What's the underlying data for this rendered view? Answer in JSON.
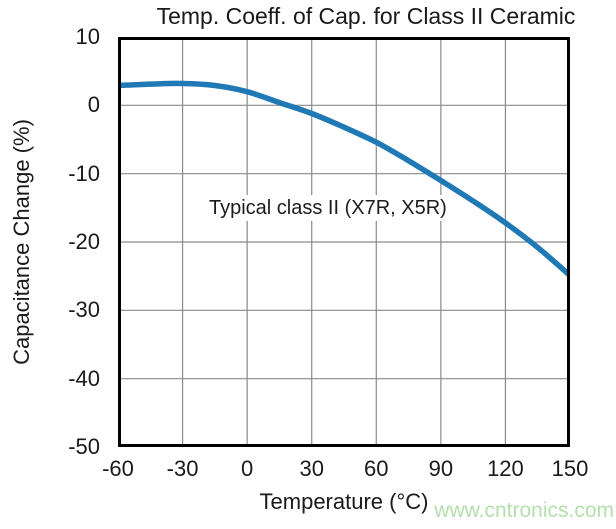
{
  "watermark": "www.cntronics.com",
  "chart_data": {
    "type": "line",
    "title": "Temp. Coeff. of Cap. for Class II Ceramic",
    "xlabel": "Temperature (°C)",
    "ylabel": "Capacitance Change (%)",
    "xlim": [
      -60,
      150
    ],
    "ylim": [
      -50,
      10
    ],
    "x_ticks": [
      -60,
      -30,
      0,
      30,
      60,
      90,
      120,
      150
    ],
    "y_ticks": [
      10,
      0,
      -10,
      -20,
      -30,
      -40,
      -50
    ],
    "grid": true,
    "legend_position": "none",
    "annotation": {
      "text": "Typical class II (X7R, X5R)"
    },
    "colors": {
      "line": "#1f79b5",
      "grid": "#8a8a8a",
      "axis": "#000000",
      "text": "#1a1a1a",
      "watermark": "#b5e0ad"
    },
    "series": [
      {
        "name": "Typical class II (X7R, X5R)",
        "x": [
          -60,
          -45,
          -30,
          -15,
          0,
          15,
          30,
          45,
          60,
          75,
          90,
          105,
          120,
          135,
          150
        ],
        "y": [
          2.9,
          3.1,
          3.2,
          2.9,
          2.0,
          0.4,
          -1.2,
          -3.2,
          -5.4,
          -8.1,
          -11.0,
          -14.0,
          -17.2,
          -20.8,
          -24.9
        ]
      }
    ]
  }
}
